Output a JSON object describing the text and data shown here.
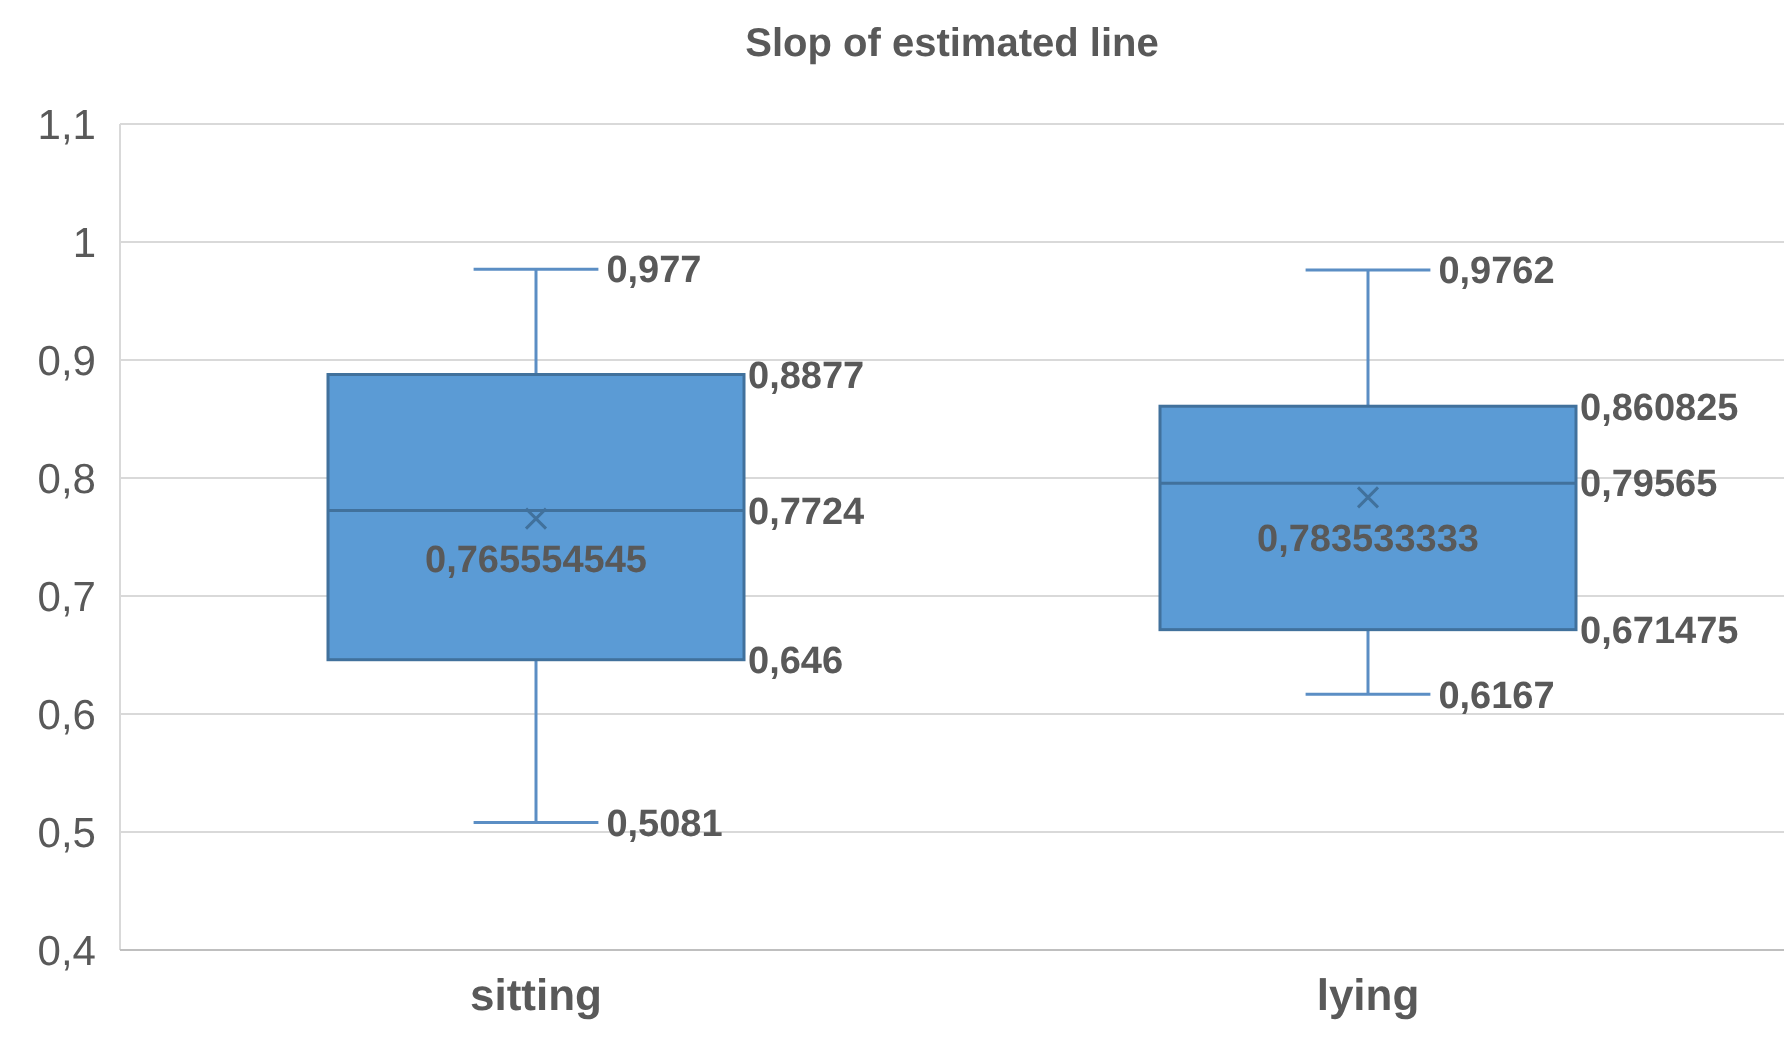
{
  "chart_data": {
    "type": "box",
    "title": "Slop of estimated line",
    "categories": [
      "sitting",
      "lying"
    ],
    "boxes": [
      {
        "low": 0.5081,
        "q1": 0.646,
        "median": 0.7724,
        "q3": 0.8877,
        "high": 0.977,
        "mean": 0.765554545
      },
      {
        "low": 0.6167,
        "q1": 0.671475,
        "median": 0.79565,
        "q3": 0.860825,
        "high": 0.9762,
        "mean": 0.783533333
      }
    ],
    "color": "#5b9bd5",
    "ylim": [
      0.4,
      1.1
    ],
    "yticks": [
      {
        "value": 0.4,
        "label": "0,4"
      },
      {
        "value": 0.5,
        "label": "0,5"
      },
      {
        "value": 0.6,
        "label": "0,6"
      },
      {
        "value": 0.7,
        "label": "0,7"
      },
      {
        "value": 0.8,
        "label": "0,8"
      },
      {
        "value": 0.9,
        "label": "0,9"
      },
      {
        "value": 1,
        "label": "1"
      },
      {
        "value": 1.1,
        "label": "1,1"
      }
    ],
    "grid": "y",
    "marker": "cross",
    "annotations": [
      "0,977",
      "0,8877",
      "0,7724",
      "0,646",
      "0,5081",
      "0,765554545",
      "0,9762",
      "0,860825",
      "0,79565",
      "0,671475",
      "0,6167",
      "0,783533333"
    ]
  }
}
